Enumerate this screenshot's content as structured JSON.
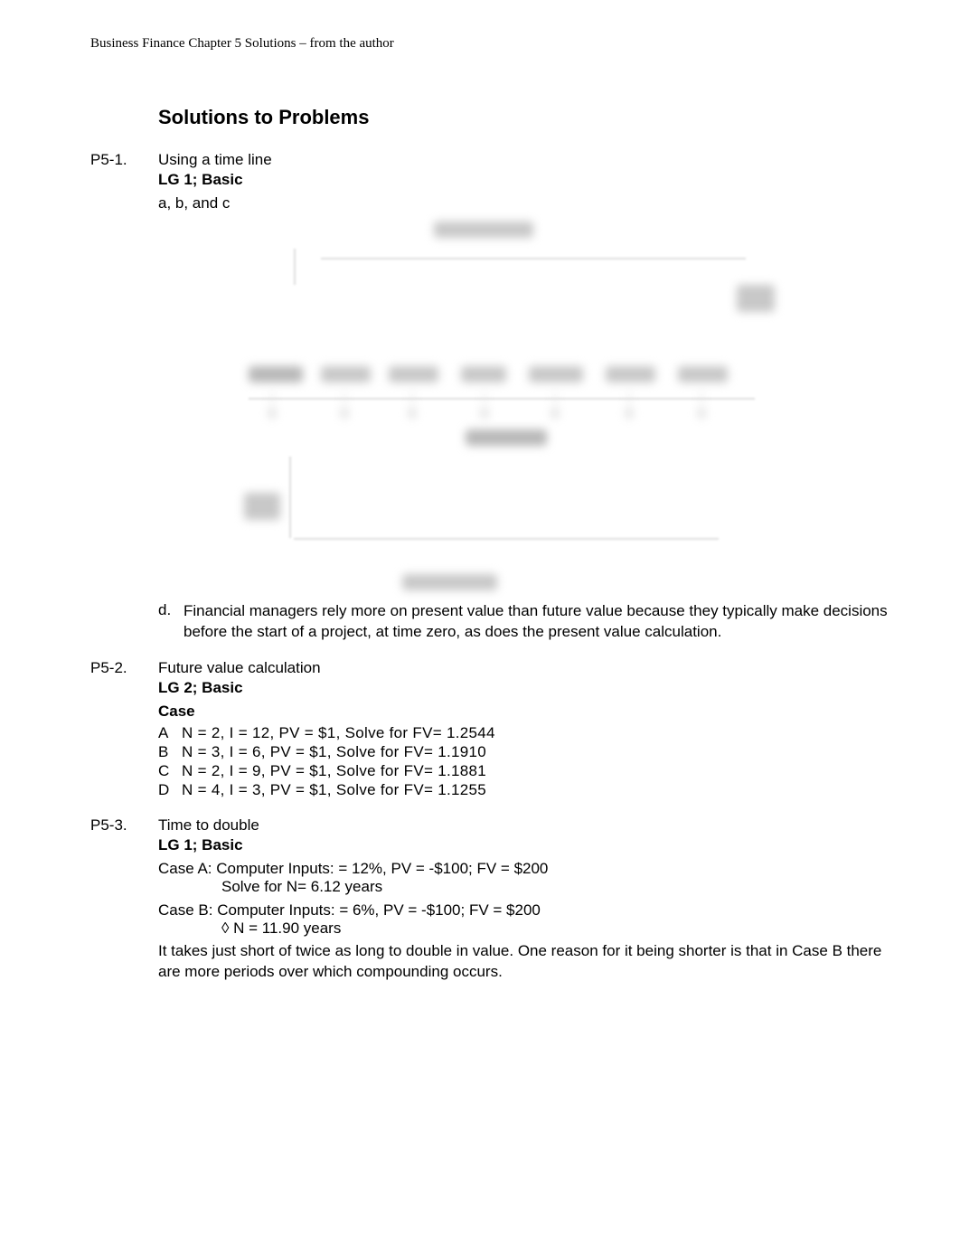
{
  "header": {
    "text": "Business Finance Chapter 5 Solutions – from the author"
  },
  "section_title": "Solutions to Problems",
  "problems": {
    "p1": {
      "id": "P5-1.",
      "title": "Using a time line",
      "lg": "LG 1; Basic",
      "abc": "a, b, and c",
      "d_label": "d.",
      "d_text": "Financial managers rely more on present value than future value because they typically make decisions before the start of a project, at time zero, as does the present value calculation."
    },
    "p2": {
      "id": "P5-2.",
      "title": "Future value calculation",
      "lg": "LG 2; Basic",
      "case_heading": "Case",
      "cases": [
        {
          "label": "A",
          "text": "N = 2, I = 12, PV = $1, Solve for FV= 1.2544"
        },
        {
          "label": "B",
          "text": "N = 3, I = 6,  PV = $1, Solve for FV= 1.1910"
        },
        {
          "label": "C",
          "text": "N = 2, I = 9,  PV = $1, Solve for FV= 1.1881"
        },
        {
          "label": "D",
          "text": "N = 4, I = 3,  PV = $1, Solve for FV= 1.1255"
        }
      ]
    },
    "p3": {
      "id": "P5-3.",
      "title": "Time to double",
      "lg": "LG 1; Basic",
      "caseA_line1": "Case A: Computer Inputs: = 12%, PV = -$100; FV = $200",
      "caseA_line2": "Solve for N= 6.12 years",
      "caseB_line1": "Case B: Computer Inputs: = 6%, PV = -$100; FV = $200",
      "caseB_line2": "◊ N = 11.90 years",
      "conclusion": "It takes just short of twice as long to double in value. One reason for it being shorter is that in Case B there are more periods over which compounding occurs."
    }
  },
  "diagram": {
    "background_color": "#ffffff",
    "blur_light": "#dddddd",
    "blur_mid": "#c8c8c8",
    "blur_dark": "#b8b8b8"
  }
}
